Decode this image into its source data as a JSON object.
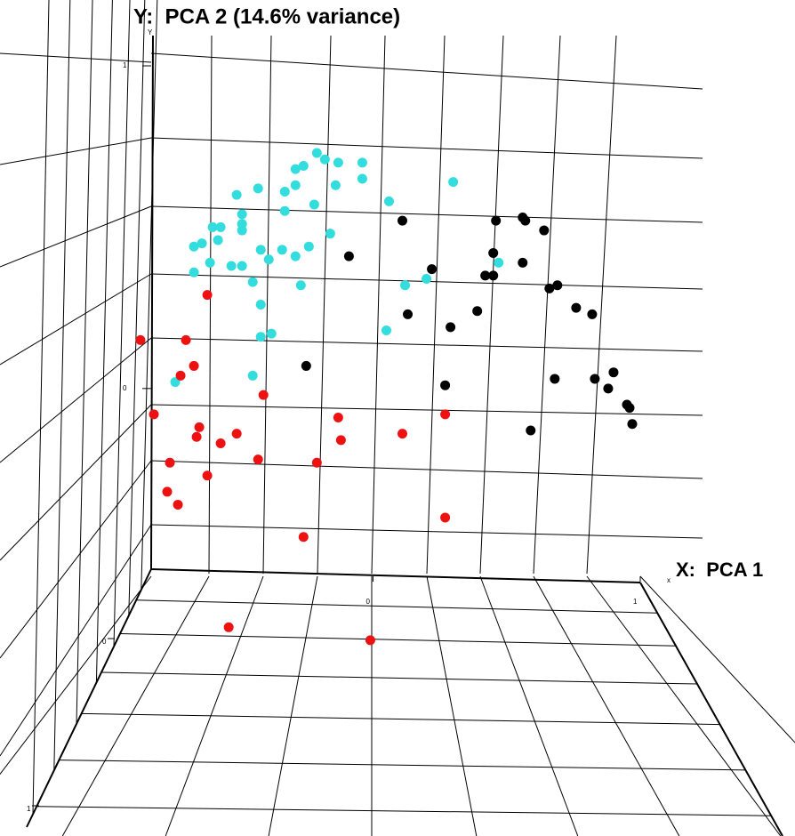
{
  "chart_data": {
    "type": "scatter3d",
    "title": "Y:  PCA 2 (14.6% variance)",
    "x_label": "X:  PCA 1",
    "x_axis_letter": "x",
    "y_axis_letter": "Y",
    "xlim": [
      -0.83,
      1.0
    ],
    "ylim": [
      -0.56,
      1.08
    ],
    "xticks": [
      0,
      1
    ],
    "yticks": [
      0,
      1
    ],
    "zticks": [
      0,
      1
    ],
    "series": [
      {
        "color": "#33dddd",
        "x": [
          -0.21,
          -0.18,
          -0.26,
          -0.29,
          -0.13,
          -0.04,
          -0.04,
          0.3,
          -0.43,
          -0.51,
          -0.33,
          -0.29,
          -0.14,
          -0.22,
          0.06,
          -0.33,
          -0.49,
          -0.57,
          -0.6,
          -0.49,
          -0.49,
          -0.58,
          -0.64,
          -0.67,
          -0.16,
          -0.24,
          -0.34,
          -0.29,
          -0.39,
          -0.42,
          -0.61,
          -0.53,
          -0.49,
          -0.67,
          0.2,
          0.12,
          -0.45,
          -0.27,
          0.47,
          -0.42,
          0.05,
          -0.42,
          -0.38,
          -0.45,
          -0.74
        ],
        "values": [
          0.73,
          0.71,
          0.69,
          0.68,
          0.7,
          0.7,
          0.65,
          0.64,
          0.62,
          0.6,
          0.61,
          0.63,
          0.63,
          0.57,
          0.58,
          0.55,
          0.54,
          0.5,
          0.5,
          0.51,
          0.49,
          0.46,
          0.45,
          0.44,
          0.48,
          0.44,
          0.43,
          0.41,
          0.4,
          0.43,
          0.39,
          0.38,
          0.38,
          0.36,
          0.34,
          0.32,
          0.33,
          0.32,
          0.39,
          0.26,
          0.18,
          0.16,
          0.17,
          0.04,
          0.02
        ]
      },
      {
        "color": "#000000",
        "x": [
          0.11,
          0.46,
          0.56,
          0.57,
          0.64,
          0.45,
          -0.09,
          0.22,
          0.56,
          0.42,
          0.45,
          0.69,
          0.66,
          0.76,
          0.82,
          0.13,
          0.39,
          0.29,
          -0.25,
          0.27,
          0.68,
          0.9,
          0.83,
          0.88,
          0.95,
          0.96,
          0.59,
          0.97
        ],
        "values": [
          0.52,
          0.52,
          0.53,
          0.52,
          0.49,
          0.42,
          0.41,
          0.37,
          0.39,
          0.35,
          0.35,
          0.32,
          0.31,
          0.25,
          0.23,
          0.23,
          0.24,
          0.19,
          0.07,
          0.01,
          0.03,
          0.05,
          0.03,
          0.0,
          -0.05,
          -0.06,
          -0.13,
          -0.11
        ]
      },
      {
        "color": "#ee1111",
        "x": [
          -0.62,
          -0.87,
          -0.7,
          -0.67,
          -0.72,
          -0.41,
          -0.82,
          -0.13,
          0.27,
          -0.65,
          -0.66,
          -0.51,
          -0.57,
          -0.12,
          0.11,
          -0.43,
          -0.76,
          -0.21,
          -0.62,
          -0.77,
          -0.73,
          0.27,
          -0.26,
          -0.54,
          -0.01
        ],
        "values": [
          0.29,
          0.15,
          0.15,
          0.07,
          0.04,
          -0.02,
          -0.08,
          -0.09,
          -0.08,
          -0.12,
          -0.15,
          -0.14,
          -0.17,
          -0.16,
          -0.14,
          -0.22,
          -0.23,
          -0.23,
          -0.27,
          -0.32,
          -0.36,
          -0.4,
          -0.46,
          -0.74,
          -0.78
        ]
      }
    ]
  }
}
